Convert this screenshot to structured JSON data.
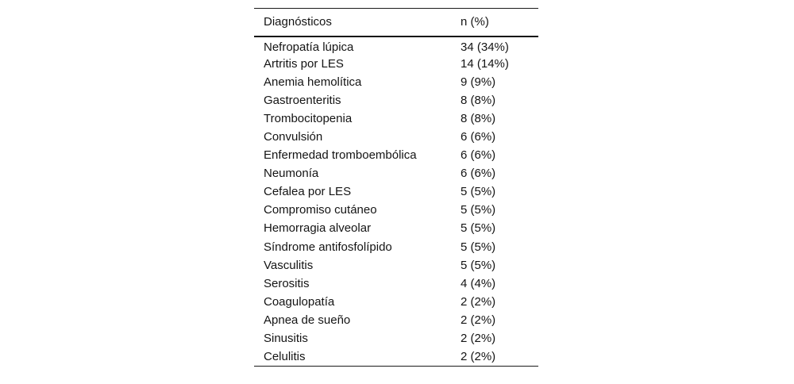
{
  "table": {
    "headers": [
      "Diagnósticos",
      "n (%)"
    ],
    "rows": [
      [
        "Nefropatía lúpica",
        "34 (34%)"
      ],
      [
        "Artritis por LES",
        "14 (14%)"
      ],
      [
        "Anemia hemolítica",
        "9 (9%)"
      ],
      [
        "Gastroenteritis",
        "8 (8%)"
      ],
      [
        "Trombocitopenia",
        "8 (8%)"
      ],
      [
        "Convulsión",
        "6 (6%)"
      ],
      [
        "Enfermedad tromboembólica",
        "6 (6%)"
      ],
      [
        "Neumonía",
        "6 (6%)"
      ],
      [
        "Cefalea por LES",
        "5 (5%)"
      ],
      [
        "Compromiso cutáneo",
        "5 (5%)"
      ],
      [
        "Hemorragia alveolar",
        "5 (5%)"
      ],
      [
        "Síndrome antifosfolípido",
        "5 (5%)"
      ],
      [
        "Vasculitis",
        "5 (5%)"
      ],
      [
        "Serositis",
        "4 (4%)"
      ],
      [
        "Coagulopatía",
        "2 (2%)"
      ],
      [
        "Apnea de sueño",
        "2 (2%)"
      ],
      [
        "Sinusitis",
        "2 (2%)"
      ],
      [
        "Celulitis",
        "2 (2%)"
      ]
    ]
  },
  "colors": {
    "text": "#141414",
    "rule": "#1a1a1a",
    "background": "#ffffff"
  },
  "chart_data": {
    "type": "table",
    "title": "",
    "columns": [
      "Diagnósticos",
      "n (%)"
    ],
    "categories": [
      "Nefropatía lúpica",
      "Artritis por LES",
      "Anemia hemolítica",
      "Gastroenteritis",
      "Trombocitopenia",
      "Convulsión",
      "Enfermedad tromboembólica",
      "Neumonía",
      "Cefalea por LES",
      "Compromiso cutáneo",
      "Hemorragia alveolar",
      "Síndrome antifosfolípido",
      "Vasculitis",
      "Serositis",
      "Coagulopatía",
      "Apnea de sueño",
      "Sinusitis",
      "Celulitis"
    ],
    "values": [
      34,
      14,
      9,
      8,
      8,
      6,
      6,
      6,
      5,
      5,
      5,
      5,
      5,
      4,
      2,
      2,
      2,
      2
    ],
    "percentages": [
      34,
      14,
      9,
      8,
      8,
      6,
      6,
      6,
      5,
      5,
      5,
      5,
      5,
      4,
      2,
      2,
      2,
      2
    ]
  }
}
